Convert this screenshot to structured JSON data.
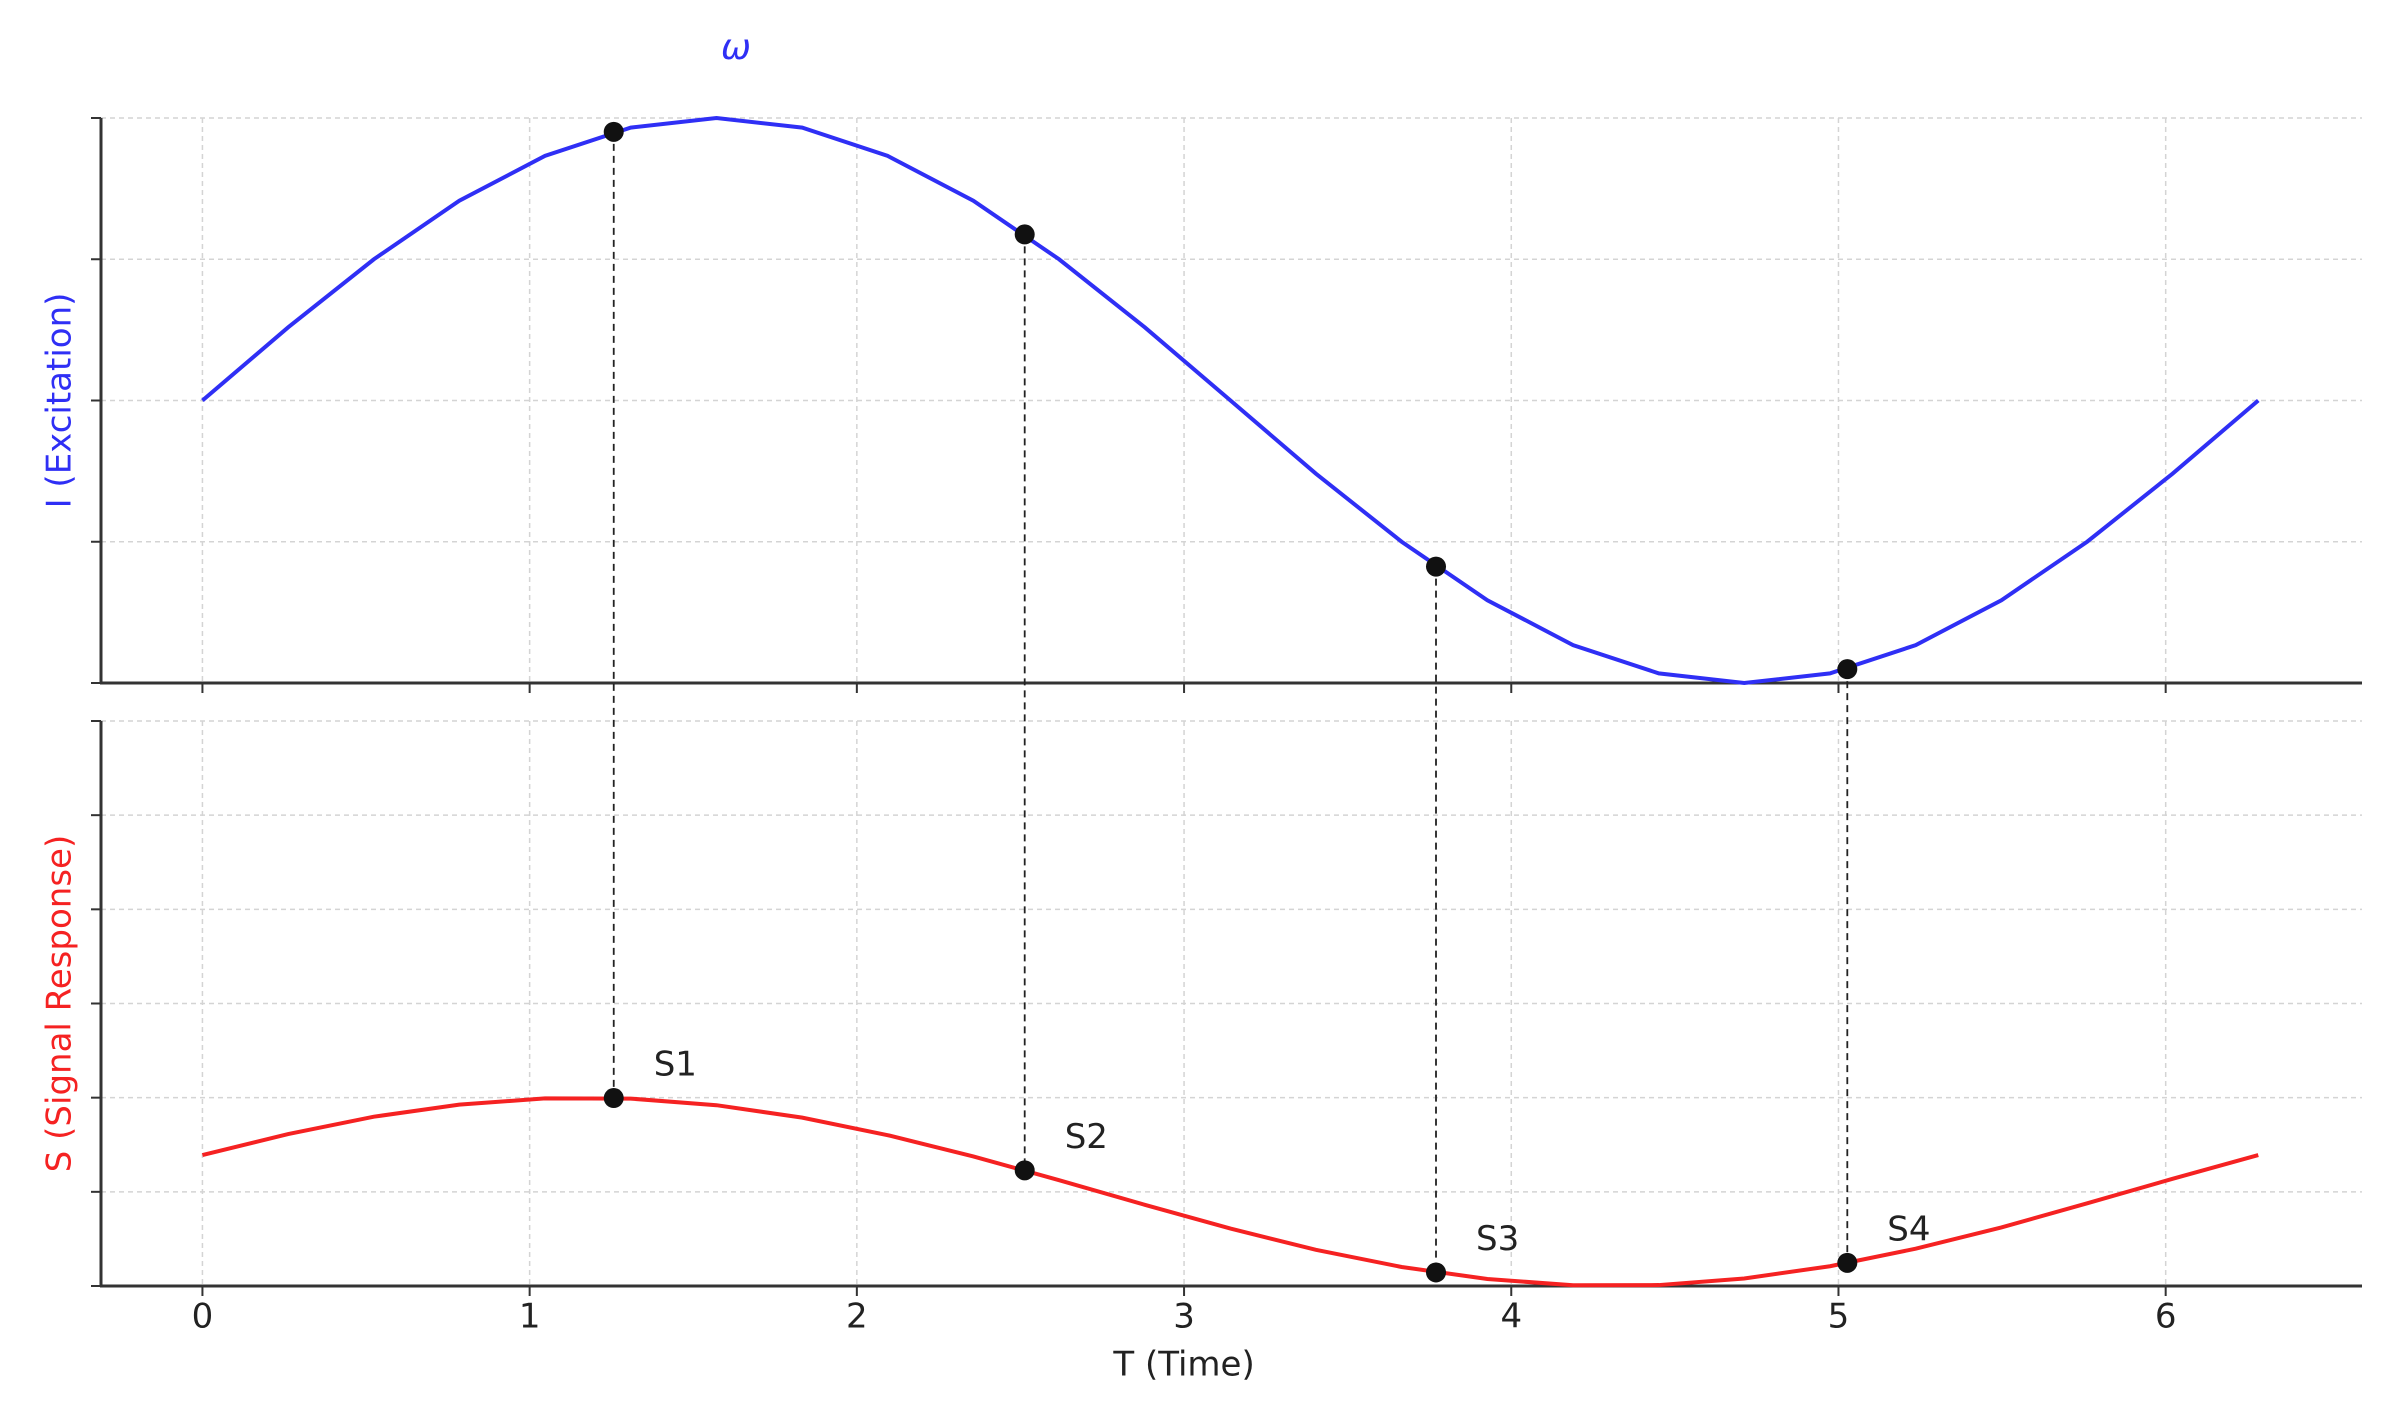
{
  "chart_data": [
    {
      "type": "line",
      "title": "ω",
      "ylabel": "I (Excitation)",
      "color": "#2f2ff5",
      "xlim": [
        -0.31,
        6.6
      ],
      "xticks": [
        0,
        1,
        2,
        3,
        4,
        5,
        6
      ],
      "xtick_labels": false,
      "ylim": [
        -1,
        1
      ],
      "yticks": [
        -1,
        -0.5,
        0,
        0.5,
        1
      ],
      "ytick_labels": false,
      "grid": true,
      "x": [
        0,
        0.262,
        0.524,
        0.785,
        1.047,
        1.309,
        1.571,
        1.833,
        2.094,
        2.356,
        2.618,
        2.88,
        3.142,
        3.403,
        3.665,
        3.927,
        4.189,
        4.451,
        4.712,
        4.974,
        5.236,
        5.498,
        5.76,
        6.021,
        6.283
      ],
      "values": [
        0,
        0.259,
        0.5,
        0.707,
        0.866,
        0.966,
        1,
        0.966,
        0.866,
        0.707,
        0.5,
        0.259,
        0,
        -0.259,
        -0.5,
        -0.707,
        -0.866,
        -0.966,
        -1,
        -0.966,
        -0.866,
        -0.707,
        -0.5,
        -0.259,
        0
      ],
      "points": {
        "x": [
          1.257,
          2.513,
          3.77,
          5.027
        ],
        "values": [
          0.951,
          0.588,
          -0.588,
          -0.951
        ]
      }
    },
    {
      "type": "line",
      "ylabel": "S (Signal Response)",
      "xlabel": "T (Time)",
      "color": "#f52222",
      "xlim": [
        -0.31,
        6.6
      ],
      "xticks": [
        0,
        1,
        2,
        3,
        4,
        5,
        6
      ],
      "xtick_labels": true,
      "ylim": [
        -0.5,
        2.5
      ],
      "yticks": [
        -0.5,
        0,
        0.5,
        1,
        1.5,
        2,
        2.5
      ],
      "ytick_labels": false,
      "grid": true,
      "x": [
        0,
        0.262,
        0.524,
        0.785,
        1.047,
        1.309,
        1.571,
        1.833,
        2.094,
        2.356,
        2.618,
        2.88,
        3.142,
        3.403,
        3.665,
        3.927,
        4.189,
        4.451,
        4.712,
        4.974,
        5.236,
        5.498,
        5.76,
        6.021,
        6.283
      ],
      "values": [
        0.195,
        0.307,
        0.399,
        0.463,
        0.496,
        0.495,
        0.46,
        0.394,
        0.301,
        0.188,
        0.062,
        -0.069,
        -0.195,
        -0.308,
        -0.399,
        -0.463,
        -0.496,
        -0.495,
        -0.46,
        -0.395,
        -0.302,
        -0.189,
        -0.061,
        0.069,
        0.195
      ],
      "points": {
        "x": [
          1.257,
          2.513,
          3.77,
          5.027
        ],
        "values": [
          0.498,
          0.114,
          -0.428,
          -0.377
        ],
        "labels": [
          "S1",
          "S2",
          "S3",
          "S4"
        ]
      }
    }
  ]
}
